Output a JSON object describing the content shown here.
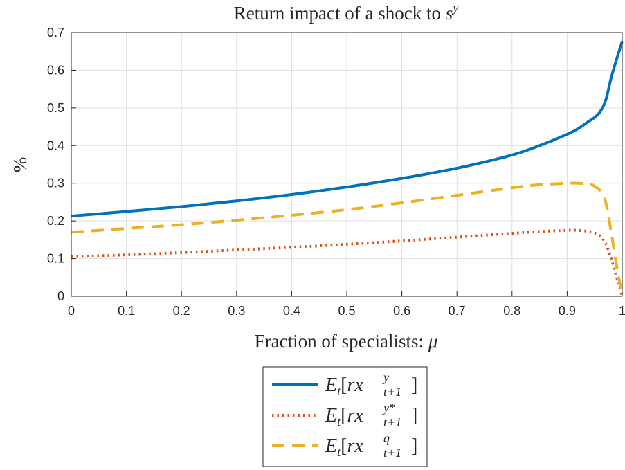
{
  "chart_data": {
    "type": "line",
    "title_prefix": "Return impact of a shock to ",
    "title_symbol": "s",
    "title_sup": "y",
    "xlabel_prefix": "Fraction of specialists: ",
    "xlabel_symbol": "μ",
    "ylabel": "%",
    "xlim": [
      0,
      1
    ],
    "ylim": [
      0,
      0.7
    ],
    "xticks": [
      "0",
      "0.1",
      "0.2",
      "0.3",
      "0.4",
      "0.5",
      "0.6",
      "0.7",
      "0.8",
      "0.9",
      "1"
    ],
    "yticks": [
      "0",
      "0.1",
      "0.2",
      "0.3",
      "0.4",
      "0.5",
      "0.6",
      "0.7"
    ],
    "grid": true,
    "legend_position": "below",
    "x": [
      0,
      0.1,
      0.2,
      0.3,
      0.4,
      0.5,
      0.6,
      0.7,
      0.8,
      0.85,
      0.9,
      0.92,
      0.94,
      0.95,
      0.96,
      0.97,
      0.98,
      0.99,
      1.0
    ],
    "series": [
      {
        "name": "E_t[rx^y_{t+1}]",
        "color": "#0072BD",
        "style": "solid",
        "values": [
          0.213,
          0.225,
          0.238,
          0.253,
          0.27,
          0.29,
          0.313,
          0.34,
          0.375,
          0.4,
          0.43,
          0.445,
          0.465,
          0.475,
          0.49,
          0.52,
          0.58,
          0.63,
          0.677
        ]
      },
      {
        "name": "E_t[rx^{y*}_{t+1}]",
        "color": "#D95319",
        "style": "dotted",
        "values": [
          0.105,
          0.11,
          0.116,
          0.123,
          0.13,
          0.138,
          0.147,
          0.157,
          0.167,
          0.172,
          0.175,
          0.175,
          0.172,
          0.168,
          0.16,
          0.14,
          0.1,
          0.05,
          0.0
        ]
      },
      {
        "name": "E_t[rx^q_{t+1}]",
        "color": "#EDB120",
        "style": "dashed",
        "values": [
          0.17,
          0.18,
          0.19,
          0.202,
          0.215,
          0.23,
          0.248,
          0.268,
          0.288,
          0.296,
          0.3,
          0.3,
          0.298,
          0.292,
          0.28,
          0.25,
          0.17,
          0.08,
          0.0
        ]
      }
    ],
    "legend": [
      {
        "base": "E",
        "sub_t": "t",
        "open": "[",
        "rx": "rx",
        "sup": "y",
        "sub": "t+1",
        "close": "]"
      },
      {
        "base": "E",
        "sub_t": "t",
        "open": "[",
        "rx": "rx",
        "sup": "y*",
        "sub": "t+1",
        "close": "]"
      },
      {
        "base": "E",
        "sub_t": "t",
        "open": "[",
        "rx": "rx",
        "sup": "q",
        "sub": "t+1",
        "close": "]"
      }
    ]
  }
}
